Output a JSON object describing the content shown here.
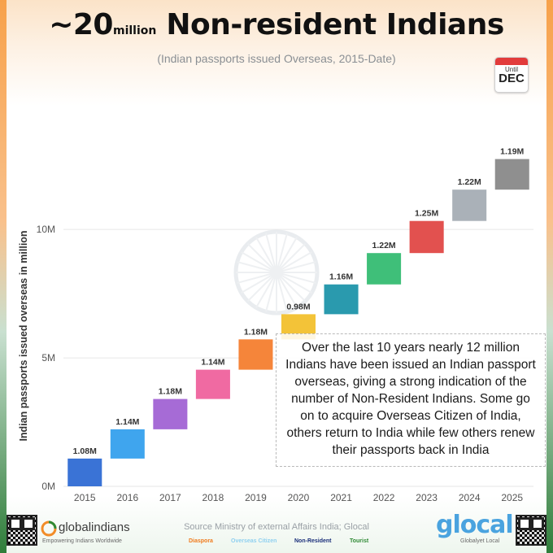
{
  "header": {
    "title_approx": "~20",
    "title_unit": "million",
    "title_main": "Non-resident Indians",
    "subtitle": "(Indian passports issued Overseas, 2015-Date)",
    "calendar_small": "Until",
    "calendar_month": "DEC"
  },
  "chart_data": {
    "type": "waterfall",
    "title": "~20 million Non-resident Indians",
    "subtitle": "(Indian passports issued Overseas, 2015-Date)",
    "xlabel": "",
    "ylabel": "Indian passports issued overseas in million",
    "categories": [
      "2015",
      "2016",
      "2017",
      "2018",
      "2019",
      "2020",
      "2021",
      "2022",
      "2023",
      "2024",
      "2025"
    ],
    "values": [
      1.08,
      1.14,
      1.18,
      1.14,
      1.18,
      0.98,
      1.16,
      1.22,
      1.25,
      1.22,
      1.19
    ],
    "data_labels": [
      "1.08M",
      "1.14M",
      "1.18M",
      "1.14M",
      "1.18M",
      "0.98M",
      "1.16M",
      "1.22M",
      "1.25M",
      "1.22M",
      "1.19M"
    ],
    "colors": [
      "#3a73d6",
      "#3fa5ee",
      "#a66bd6",
      "#f06aa2",
      "#f5853a",
      "#f3c338",
      "#2a9aae",
      "#3fbf79",
      "#e2514f",
      "#aab1b8",
      "#8f8f8f"
    ],
    "yticks": [
      0,
      5,
      10
    ],
    "ytick_labels": [
      "0M",
      "5M",
      "10M"
    ],
    "ylim": [
      0,
      14.5
    ],
    "grid": true
  },
  "callout": {
    "text": "Over the last 10 years nearly 12 million Indians have been issued an Indian passport overseas, giving a strong indication of the number of Non-Resident Indians. Some go on to acquire Overseas Citizen of India, others return to India while few others renew their passports back in India"
  },
  "footer": {
    "source": "Source Ministry of external Affairs India; Glocal",
    "brand_left": "globalindians",
    "brand_left_tag": "Empowering Indians Worldwide",
    "brand_right": "glocal",
    "brand_right_tag": "Globalyet Local",
    "legend": [
      {
        "label": "Diaspora",
        "color": "#f07b1d"
      },
      {
        "label": "Overseas Citizen",
        "color": "#8fd0f0"
      },
      {
        "label": "Non-Resident",
        "color": "#1b2f7a"
      },
      {
        "label": "Tourist",
        "color": "#2f8a35"
      }
    ]
  }
}
